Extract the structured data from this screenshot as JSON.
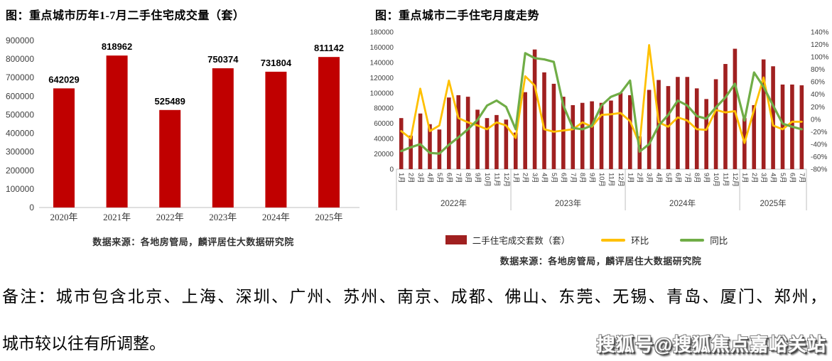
{
  "note": {
    "line1": "备注：城市包含北京、上海、深圳、广州、苏州、南京、成都、佛山、东莞、无锡、青岛、厦门、郑州，",
    "line2": "城市较以往有所调整。"
  },
  "watermark": {
    "text": "搜狐号@搜狐焦点嘉峪关站"
  },
  "chart_data": [
    {
      "type": "bar",
      "title": "图：重点城市历年1-7月二手住宅成交量（套）",
      "categories": [
        "2020年",
        "2021年",
        "2022年",
        "2023年",
        "2024年",
        "2025年"
      ],
      "values": [
        642029,
        818962,
        525489,
        750374,
        731804,
        811142
      ],
      "ylabel": "套",
      "ylim": [
        0,
        900000
      ],
      "ytick_step": 100000,
      "bar_color": "#C00000",
      "grid": false,
      "source": "数据来源：各地房管局，麟评居住大数据研究院"
    },
    {
      "type": "bar+line",
      "title": "图：重点城市二手住宅月度走势",
      "year_groups": [
        {
          "label": "2022年",
          "months": 12
        },
        {
          "label": "2023年",
          "months": 12
        },
        {
          "label": "2024年",
          "months": 12
        },
        {
          "label": "2025年",
          "months": 7
        }
      ],
      "categories": [
        "1月",
        "2月",
        "3月",
        "4月",
        "5月",
        "6月",
        "7月",
        "8月",
        "9月",
        "10月",
        "11月",
        "12月",
        "1月",
        "2月",
        "3月",
        "4月",
        "5月",
        "6月",
        "7月",
        "8月",
        "9月",
        "10月",
        "11月",
        "12月",
        "1月",
        "2月",
        "3月",
        "4月",
        "5月",
        "6月",
        "7月",
        "8月",
        "9月",
        "10月",
        "11月",
        "12月",
        "1月",
        "2月",
        "3月",
        "4月",
        "5月",
        "6月",
        "7月"
      ],
      "left_axis": {
        "min": 0,
        "max": 180000,
        "step": 20000
      },
      "right_axis": {
        "min": -80,
        "max": 140,
        "step": 20,
        "suffix": "%"
      },
      "grid": false,
      "legend_position": "bottom",
      "series": [
        {
          "name": "二手住宅成交套数（套）",
          "type": "bar",
          "axis": "left",
          "color": "#A02020",
          "values": [
            67000,
            44000,
            73000,
            59000,
            52000,
            94000,
            97000,
            95000,
            78000,
            67000,
            71000,
            65000,
            48000,
            101000,
            157000,
            127000,
            112000,
            95000,
            84000,
            87000,
            89000,
            87000,
            90000,
            100000,
            97000,
            43000,
            104000,
            117000,
            109000,
            121000,
            121000,
            106000,
            92000,
            118000,
            138000,
            158000,
            67000,
            84000,
            144000,
            135000,
            111000,
            111000,
            110000
          ]
        },
        {
          "name": "环比",
          "type": "line",
          "axis": "right",
          "color": "#FFC000",
          "unit": "%",
          "values": [
            -19,
            -31,
            49,
            -19,
            -10,
            62,
            2,
            -5,
            -10,
            -16,
            -5,
            -10,
            -30,
            69,
            54,
            -16,
            -20,
            -18,
            -16,
            -5,
            -12,
            7,
            8,
            10,
            -3,
            -40,
            119,
            -5,
            -12,
            3,
            -2,
            -16,
            -17,
            15,
            11,
            13,
            -38,
            15,
            67,
            -10,
            -16,
            -4,
            -4
          ]
        },
        {
          "name": "同比",
          "type": "line",
          "axis": "right",
          "color": "#70AD47",
          "unit": "%",
          "values": [
            -51,
            -45,
            -40,
            -54,
            -55,
            -41,
            -29,
            -16,
            -1,
            22,
            30,
            20,
            -16,
            106,
            98,
            96,
            92,
            22,
            -14,
            -16,
            -10,
            22,
            36,
            42,
            62,
            -52,
            -40,
            -10,
            7,
            30,
            22,
            5,
            1,
            19,
            35,
            57,
            -2,
            75,
            52,
            22,
            -7,
            -12,
            -16
          ]
        }
      ],
      "source": "数据来源：各地房管局，麟评居住大数据研究院"
    }
  ]
}
